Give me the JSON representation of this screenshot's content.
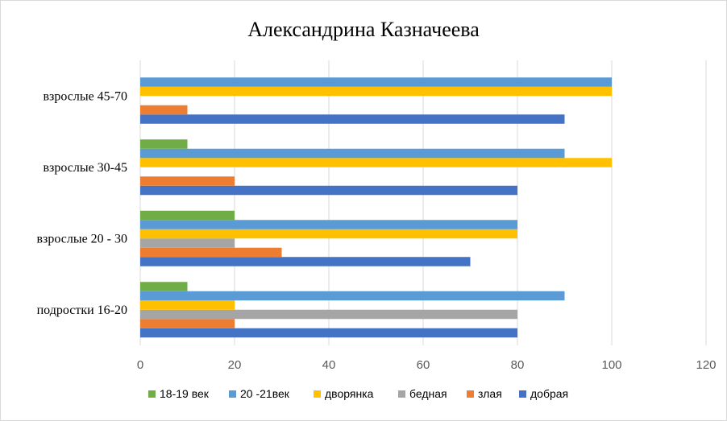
{
  "chart_data": {
    "type": "bar",
    "orientation": "horizontal",
    "title": "Александрина  Казначеева",
    "categories": [
      "подростки 16-20",
      "взрослые 20 - 30",
      "взрослые 30-45",
      "взрослые 45-70"
    ],
    "xlim": [
      0,
      120
    ],
    "xticks": [
      0,
      20,
      40,
      60,
      80,
      100,
      120
    ],
    "grid": true,
    "legend_position": "bottom",
    "series": [
      {
        "name": "добрая",
        "color": "#4472C4",
        "values": [
          80,
          70,
          80,
          90
        ]
      },
      {
        "name": "злая",
        "color": "#ED7D31",
        "values": [
          20,
          30,
          20,
          10
        ]
      },
      {
        "name": "бедная",
        "color": "#A5A5A5",
        "values": [
          80,
          20,
          0,
          0
        ]
      },
      {
        "name": "дворянка",
        "color": "#FFC000",
        "values": [
          20,
          80,
          100,
          100
        ]
      },
      {
        "name": "20 -21век",
        "color": "#5B9BD5",
        "values": [
          90,
          80,
          90,
          100
        ]
      },
      {
        "name": "18-19 век",
        "color": "#70AD47",
        "values": [
          10,
          20,
          10,
          0
        ]
      }
    ],
    "legend_order": [
      "18-19 век",
      "20 -21век",
      "дворянка",
      "бедная",
      "злая",
      "добрая"
    ]
  }
}
